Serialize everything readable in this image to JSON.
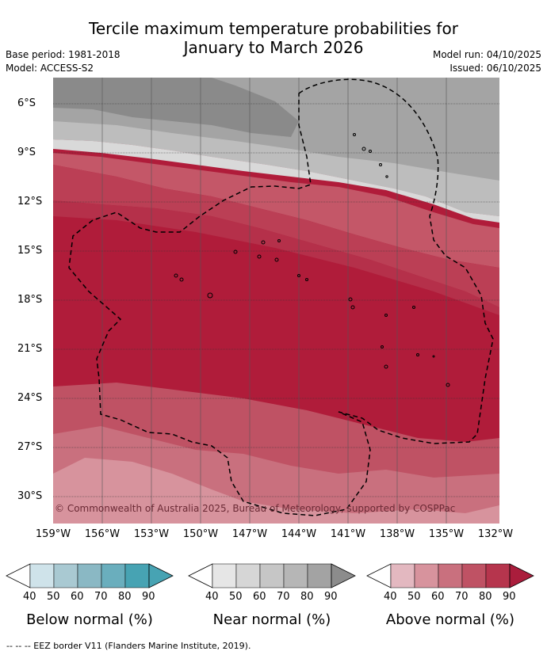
{
  "title_line1": "Tercile maximum temperature probabilities for",
  "title_line2": "January to March 2026",
  "base_period": "Base period: 1981-2018",
  "model": "Model: ACCESS-S2",
  "model_run": "Model run: 04/10/2025",
  "issued": "Issued: 06/10/2025",
  "lat_labels": [
    "6°S",
    "9°S",
    "12°S",
    "15°S",
    "18°S",
    "21°S",
    "24°S",
    "27°S",
    "30°S"
  ],
  "lon_labels": [
    "159°W",
    "156°W",
    "153°W",
    "150°W",
    "147°W",
    "144°W",
    "141°W",
    "138°W",
    "135°W",
    "132°W"
  ],
  "copyright": "© Commonwealth of Australia 2025, Bureau of Meteorology, supported by COSPPac",
  "colorbars": [
    {
      "title": "Below normal (%)",
      "ticks": [
        "40",
        "50",
        "60",
        "70",
        "80",
        "90"
      ],
      "colors": [
        "#ffffff",
        "#cfe3ea",
        "#a9c9d2",
        "#8ab8c4",
        "#6aaebd",
        "#47a3b3"
      ]
    },
    {
      "title": "Near normal (%)",
      "ticks": [
        "40",
        "50",
        "60",
        "70",
        "80",
        "90"
      ],
      "colors": [
        "#ffffff",
        "#e6e6e6",
        "#d6d6d6",
        "#c6c6c6",
        "#b6b6b6",
        "#a3a3a3",
        "#8c8c8c"
      ]
    },
    {
      "title": "Above normal (%)",
      "ticks": [
        "40",
        "50",
        "60",
        "70",
        "80",
        "90"
      ],
      "colors": [
        "#ffffff",
        "#e3b8c0",
        "#d7939d",
        "#c9707e",
        "#bf5264",
        "#b6354d",
        "#aa1d3c"
      ]
    }
  ],
  "footer": "-- -- -- EEZ border V11 (Flanders Marine Institute, 2019)."
}
